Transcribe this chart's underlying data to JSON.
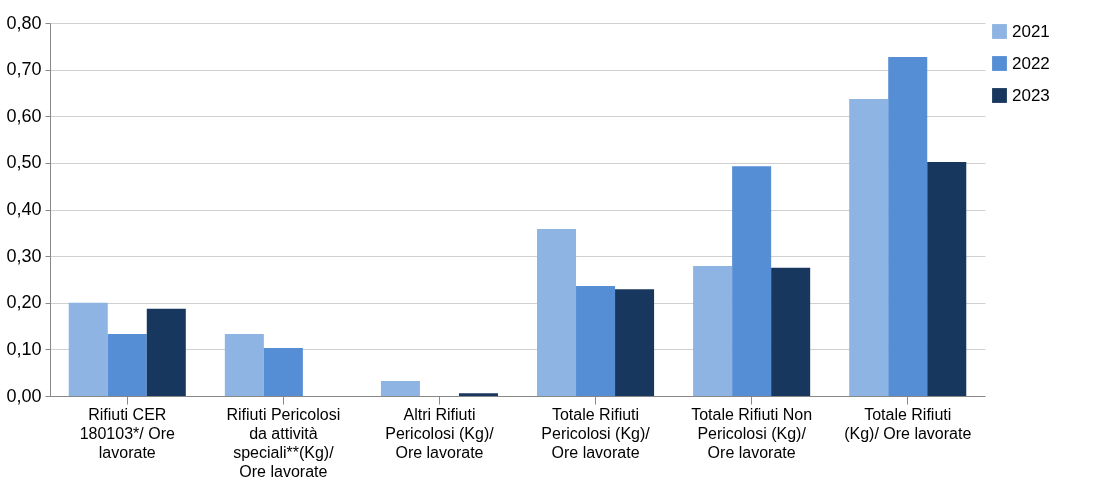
{
  "chart_data": {
    "type": "bar",
    "categories": [
      "Rifiuti CER 180103*/ Ore lavorate",
      "Rifiuti Pericolosi da attività speciali**(Kg)/ Ore lavorate",
      "Altri Rifiuti Pericolosi (Kg)/ Ore lavorate",
      "Totale Rifiuti Pericolosi (Kg)/ Ore lavorate",
      "Totale Rifiuti Non Pericolosi (Kg)/ Ore lavorate",
      "Totale Rifiuti (Kg)/ Ore lavorate"
    ],
    "series": [
      {
        "name": "2021",
        "color": "#8db4e2",
        "values": [
          0.2,
          0.133,
          0.032,
          0.358,
          0.279,
          0.637
        ]
      },
      {
        "name": "2022",
        "color": "#558ed5",
        "values": [
          0.133,
          0.103,
          0,
          0.236,
          0.493,
          0.727
        ]
      },
      {
        "name": "2023",
        "color": "#17375e",
        "values": [
          0.187,
          0,
          0.006,
          0.229,
          0.275,
          0.502
        ]
      }
    ],
    "ylim": [
      0,
      0.8
    ],
    "yticks": [
      {
        "value": 0,
        "label": "0,00"
      },
      {
        "value": 0.1,
        "label": "0,10"
      },
      {
        "value": 0.2,
        "label": "0,20"
      },
      {
        "value": 0.3,
        "label": "0,30"
      },
      {
        "value": 0.4,
        "label": "0,40"
      },
      {
        "value": 0.5,
        "label": "0,50"
      },
      {
        "value": 0.6,
        "label": "0,60"
      },
      {
        "value": 0.7,
        "label": "0,70"
      },
      {
        "value": 0.8,
        "label": "0,80"
      }
    ],
    "grid": "y",
    "legend": "right"
  }
}
